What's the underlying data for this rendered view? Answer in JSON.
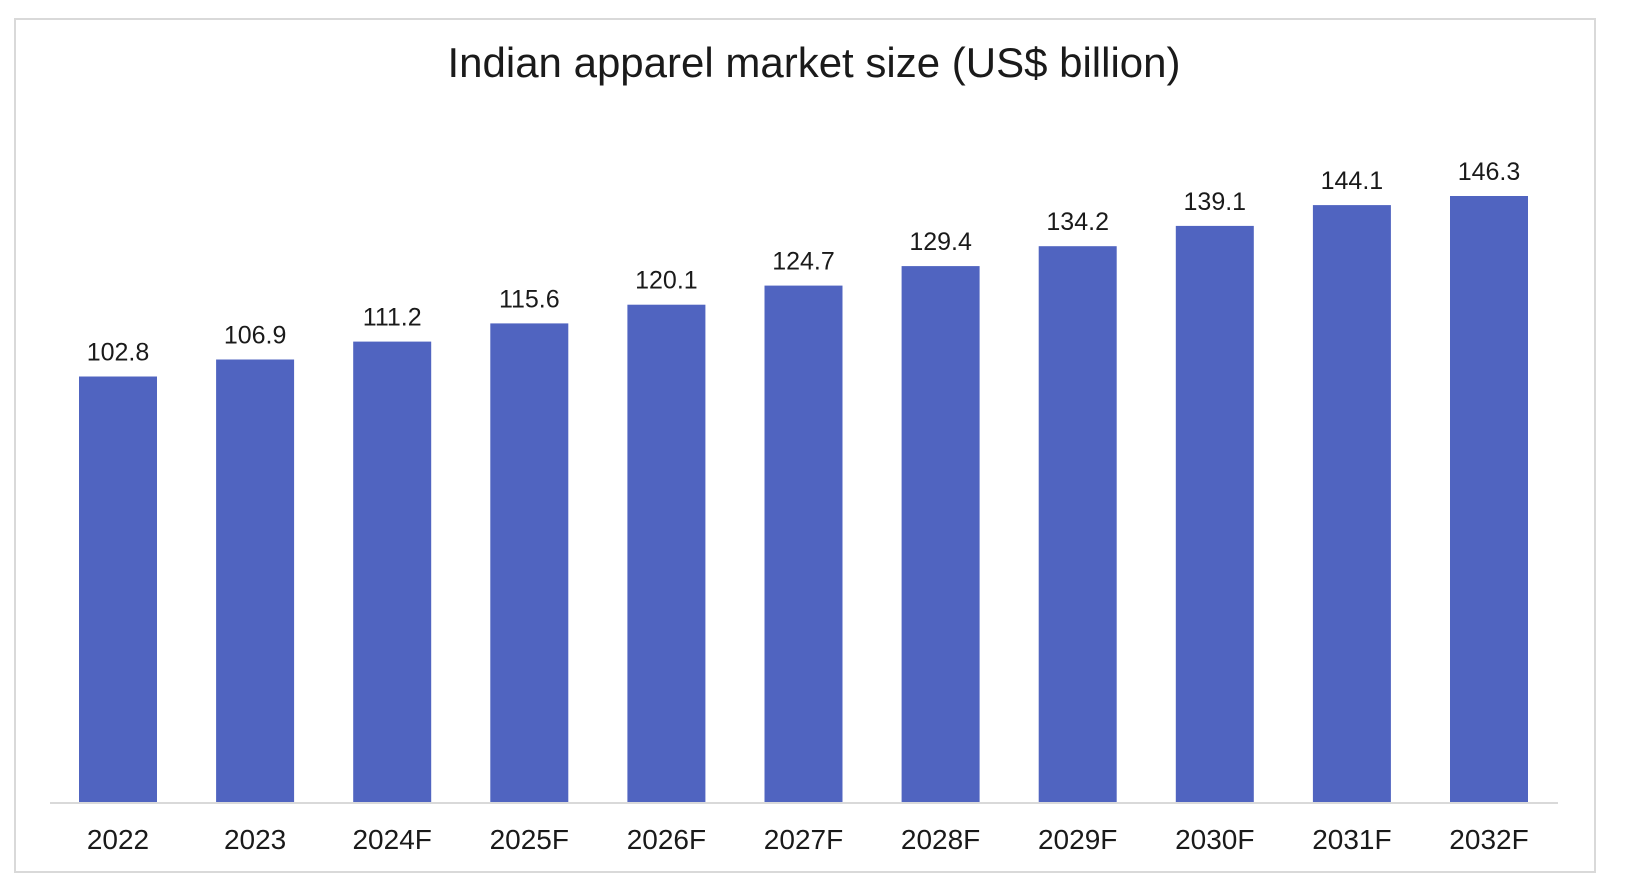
{
  "chart_data": {
    "type": "bar",
    "title": "Indian apparel market size (US$ billion)",
    "categories": [
      "2022",
      "2023",
      "2024F",
      "2025F",
      "2026F",
      "2027F",
      "2028F",
      "2029F",
      "2030F",
      "2031F",
      "2032F"
    ],
    "values": [
      102.8,
      106.9,
      111.2,
      115.6,
      120.1,
      124.7,
      129.4,
      134.2,
      139.1,
      144.1,
      146.3
    ],
    "data_labels": [
      "102.8",
      "106.9",
      "111.2",
      "115.6",
      "120.1",
      "124.7",
      "129.4",
      "134.2",
      "139.1",
      "144.1",
      "146.3"
    ],
    "xlabel": "",
    "ylabel": "",
    "ylim": [
      0,
      146.3
    ],
    "grid": false,
    "legend": "none",
    "bar_color": "#5064c0",
    "axis_color": "#d9d9d9"
  }
}
